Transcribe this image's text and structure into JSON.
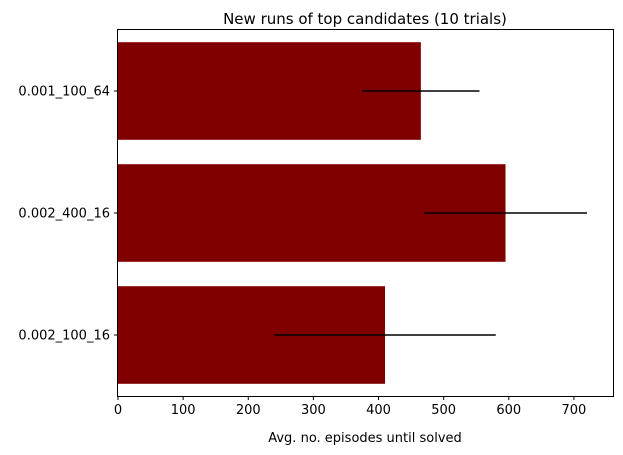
{
  "chart_data": {
    "type": "bar",
    "orientation": "horizontal",
    "title": "New runs of top candidates (10 trials)",
    "xlabel": "Avg. no. episodes until solved",
    "ylabel": "",
    "xlim": [
      0,
      760
    ],
    "xticks": [
      0,
      100,
      200,
      300,
      400,
      500,
      600,
      700
    ],
    "categories": [
      "0.002_100_16",
      "0.002_400_16",
      "0.001_100_64"
    ],
    "values": [
      410,
      595,
      465
    ],
    "errors": [
      170,
      125,
      90
    ],
    "bar_color": "#800000",
    "error_color": "#000000",
    "grid": false
  }
}
